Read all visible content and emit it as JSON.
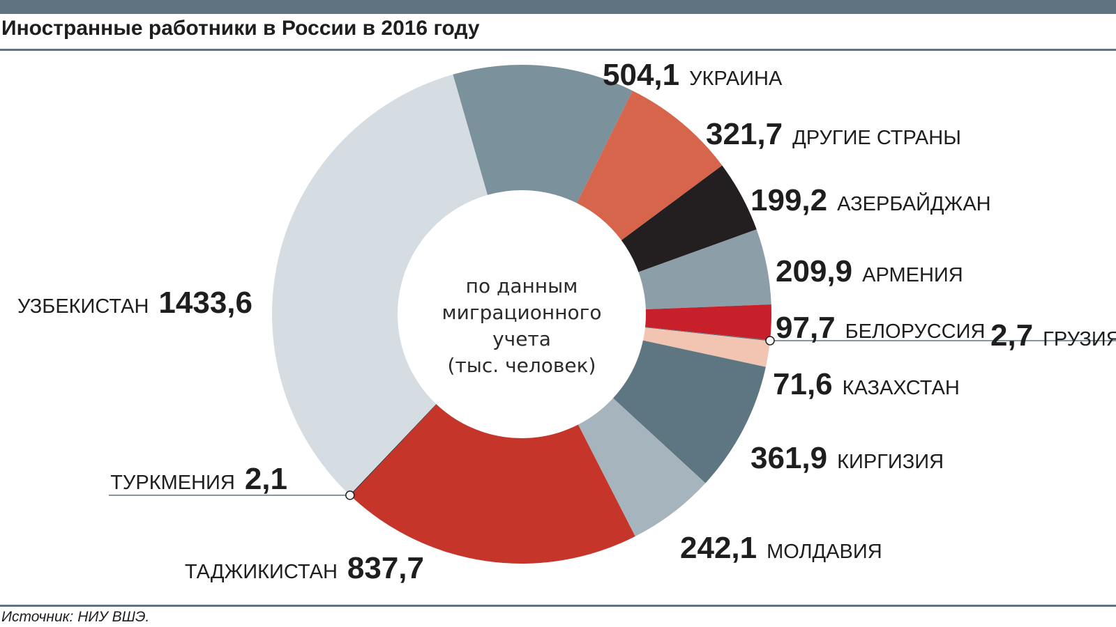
{
  "title": "Иностранные работники в России в 2016 году",
  "source": "Источник: НИУ ВШЭ.",
  "colors": {
    "header_bar": "#5f7380",
    "background": "#ffffff",
    "text": "#1e1e1e"
  },
  "chart_data": {
    "type": "pie",
    "donut": true,
    "center_note": [
      "по данным",
      "миграционного",
      "учета",
      "(тыс. человек)"
    ],
    "slices": [
      {
        "label": "УКРАИНА",
        "value": 504.1,
        "display": "504,1",
        "color": "#7b919c"
      },
      {
        "label": "ДРУГИЕ СТРАНЫ",
        "value": 321.7,
        "display": "321,7",
        "color": "#d6654b"
      },
      {
        "label": "АЗЕРБАЙДЖАН",
        "value": 199.2,
        "display": "199,2",
        "color": "#231f20"
      },
      {
        "label": "АРМЕНИЯ",
        "value": 209.9,
        "display": "209,9",
        "color": "#8c9ea8"
      },
      {
        "label": "БЕЛОРУССИЯ",
        "value": 97.7,
        "display": "97,7",
        "color": "#c8202a"
      },
      {
        "label": "ГРУЗИЯ",
        "value": 2.7,
        "display": "2,7",
        "color": "#5f7380"
      },
      {
        "label": "КАЗАХСТАН",
        "value": 71.6,
        "display": "71,6",
        "color": "#f2c4b2"
      },
      {
        "label": "КИРГИЗИЯ",
        "value": 361.9,
        "display": "361,9",
        "color": "#5e7682"
      },
      {
        "label": "МОЛДАВИЯ",
        "value": 242.1,
        "display": "242,1",
        "color": "#a5b4bd"
      },
      {
        "label": "ТАДЖИКИСТАН",
        "value": 837.7,
        "display": "837,7",
        "color": "#c6352a"
      },
      {
        "label": "ТУРКМЕНИЯ",
        "value": 2.1,
        "display": "2,1",
        "color": "#231f20"
      },
      {
        "label": "УЗБЕКИСТАН",
        "value": 1433.6,
        "display": "1433,6",
        "color": "#d5dde2"
      }
    ]
  }
}
